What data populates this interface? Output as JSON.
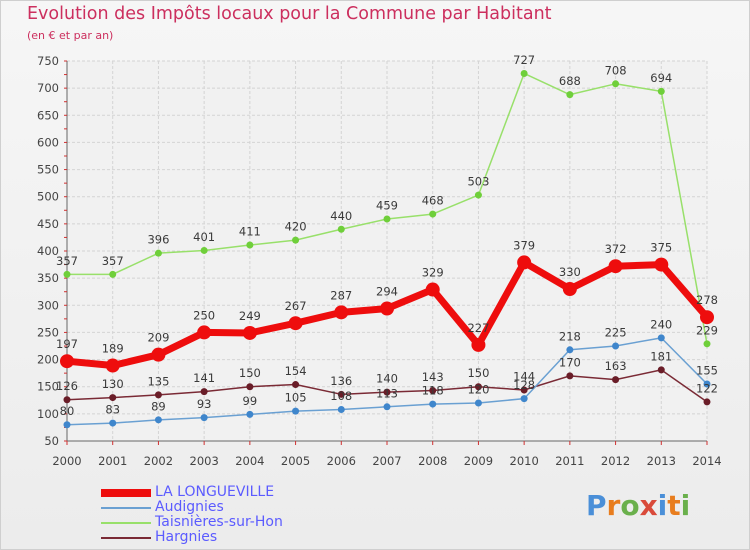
{
  "header": {
    "title": "Evolution des Impôts locaux pour la Commune par Habitant",
    "subtitle": "(en € et par an)"
  },
  "logo": {
    "text": "Proxiti",
    "colors": [
      "#4a8fd8",
      "#e87d1e",
      "#6ab04c",
      "#d94a3a",
      "#4a8fd8",
      "#e87d1e",
      "#6ab04c"
    ]
  },
  "chart_data": {
    "type": "line",
    "x": [
      2000,
      2001,
      2002,
      2003,
      2004,
      2005,
      2006,
      2007,
      2008,
      2009,
      2010,
      2011,
      2012,
      2013,
      2014
    ],
    "ylim": [
      50,
      750
    ],
    "yticks": [
      50,
      100,
      150,
      200,
      250,
      300,
      350,
      400,
      450,
      500,
      550,
      600,
      650,
      700,
      750
    ],
    "grid": true,
    "legend_position": "bottom-left",
    "series": [
      {
        "name": "Taisnières-sur-Hon",
        "color": "#98e06a",
        "marker": "#6fcf3a",
        "width": 1.5,
        "radius": 3.5,
        "values": [
          357,
          357,
          396,
          401,
          411,
          420,
          440,
          459,
          468,
          503,
          727,
          688,
          708,
          694,
          229
        ]
      },
      {
        "name": "Hargnies",
        "color": "#7a2a35",
        "marker": "#6a1d28",
        "width": 1.5,
        "radius": 3.5,
        "values": [
          126,
          130,
          135,
          141,
          150,
          154,
          136,
          140,
          143,
          150,
          144,
          170,
          163,
          181,
          122
        ]
      },
      {
        "name": "Audignies",
        "color": "#6aa0d2",
        "marker": "#3f86cc",
        "width": 1.5,
        "radius": 3.5,
        "values": [
          80,
          83,
          89,
          93,
          99,
          105,
          108,
          113,
          118,
          120,
          128,
          218,
          225,
          240,
          155
        ]
      },
      {
        "name": "LA LONGUEVILLE",
        "color": "#ee0d0d",
        "marker": "#ee0d0d",
        "width": 7,
        "radius": 7,
        "values": [
          197,
          189,
          209,
          250,
          249,
          267,
          287,
          294,
          329,
          227,
          379,
          330,
          372,
          375,
          278
        ]
      }
    ],
    "legend": [
      {
        "name": "LA LONGUEVILLE",
        "color": "#ee0d0d",
        "thickness": 8
      },
      {
        "name": "Audignies",
        "color": "#6aa0d2",
        "thickness": 2
      },
      {
        "name": "Taisnières-sur-Hon",
        "color": "#98e06a",
        "thickness": 2
      },
      {
        "name": "Hargnies",
        "color": "#7a2a35",
        "thickness": 2
      }
    ]
  }
}
